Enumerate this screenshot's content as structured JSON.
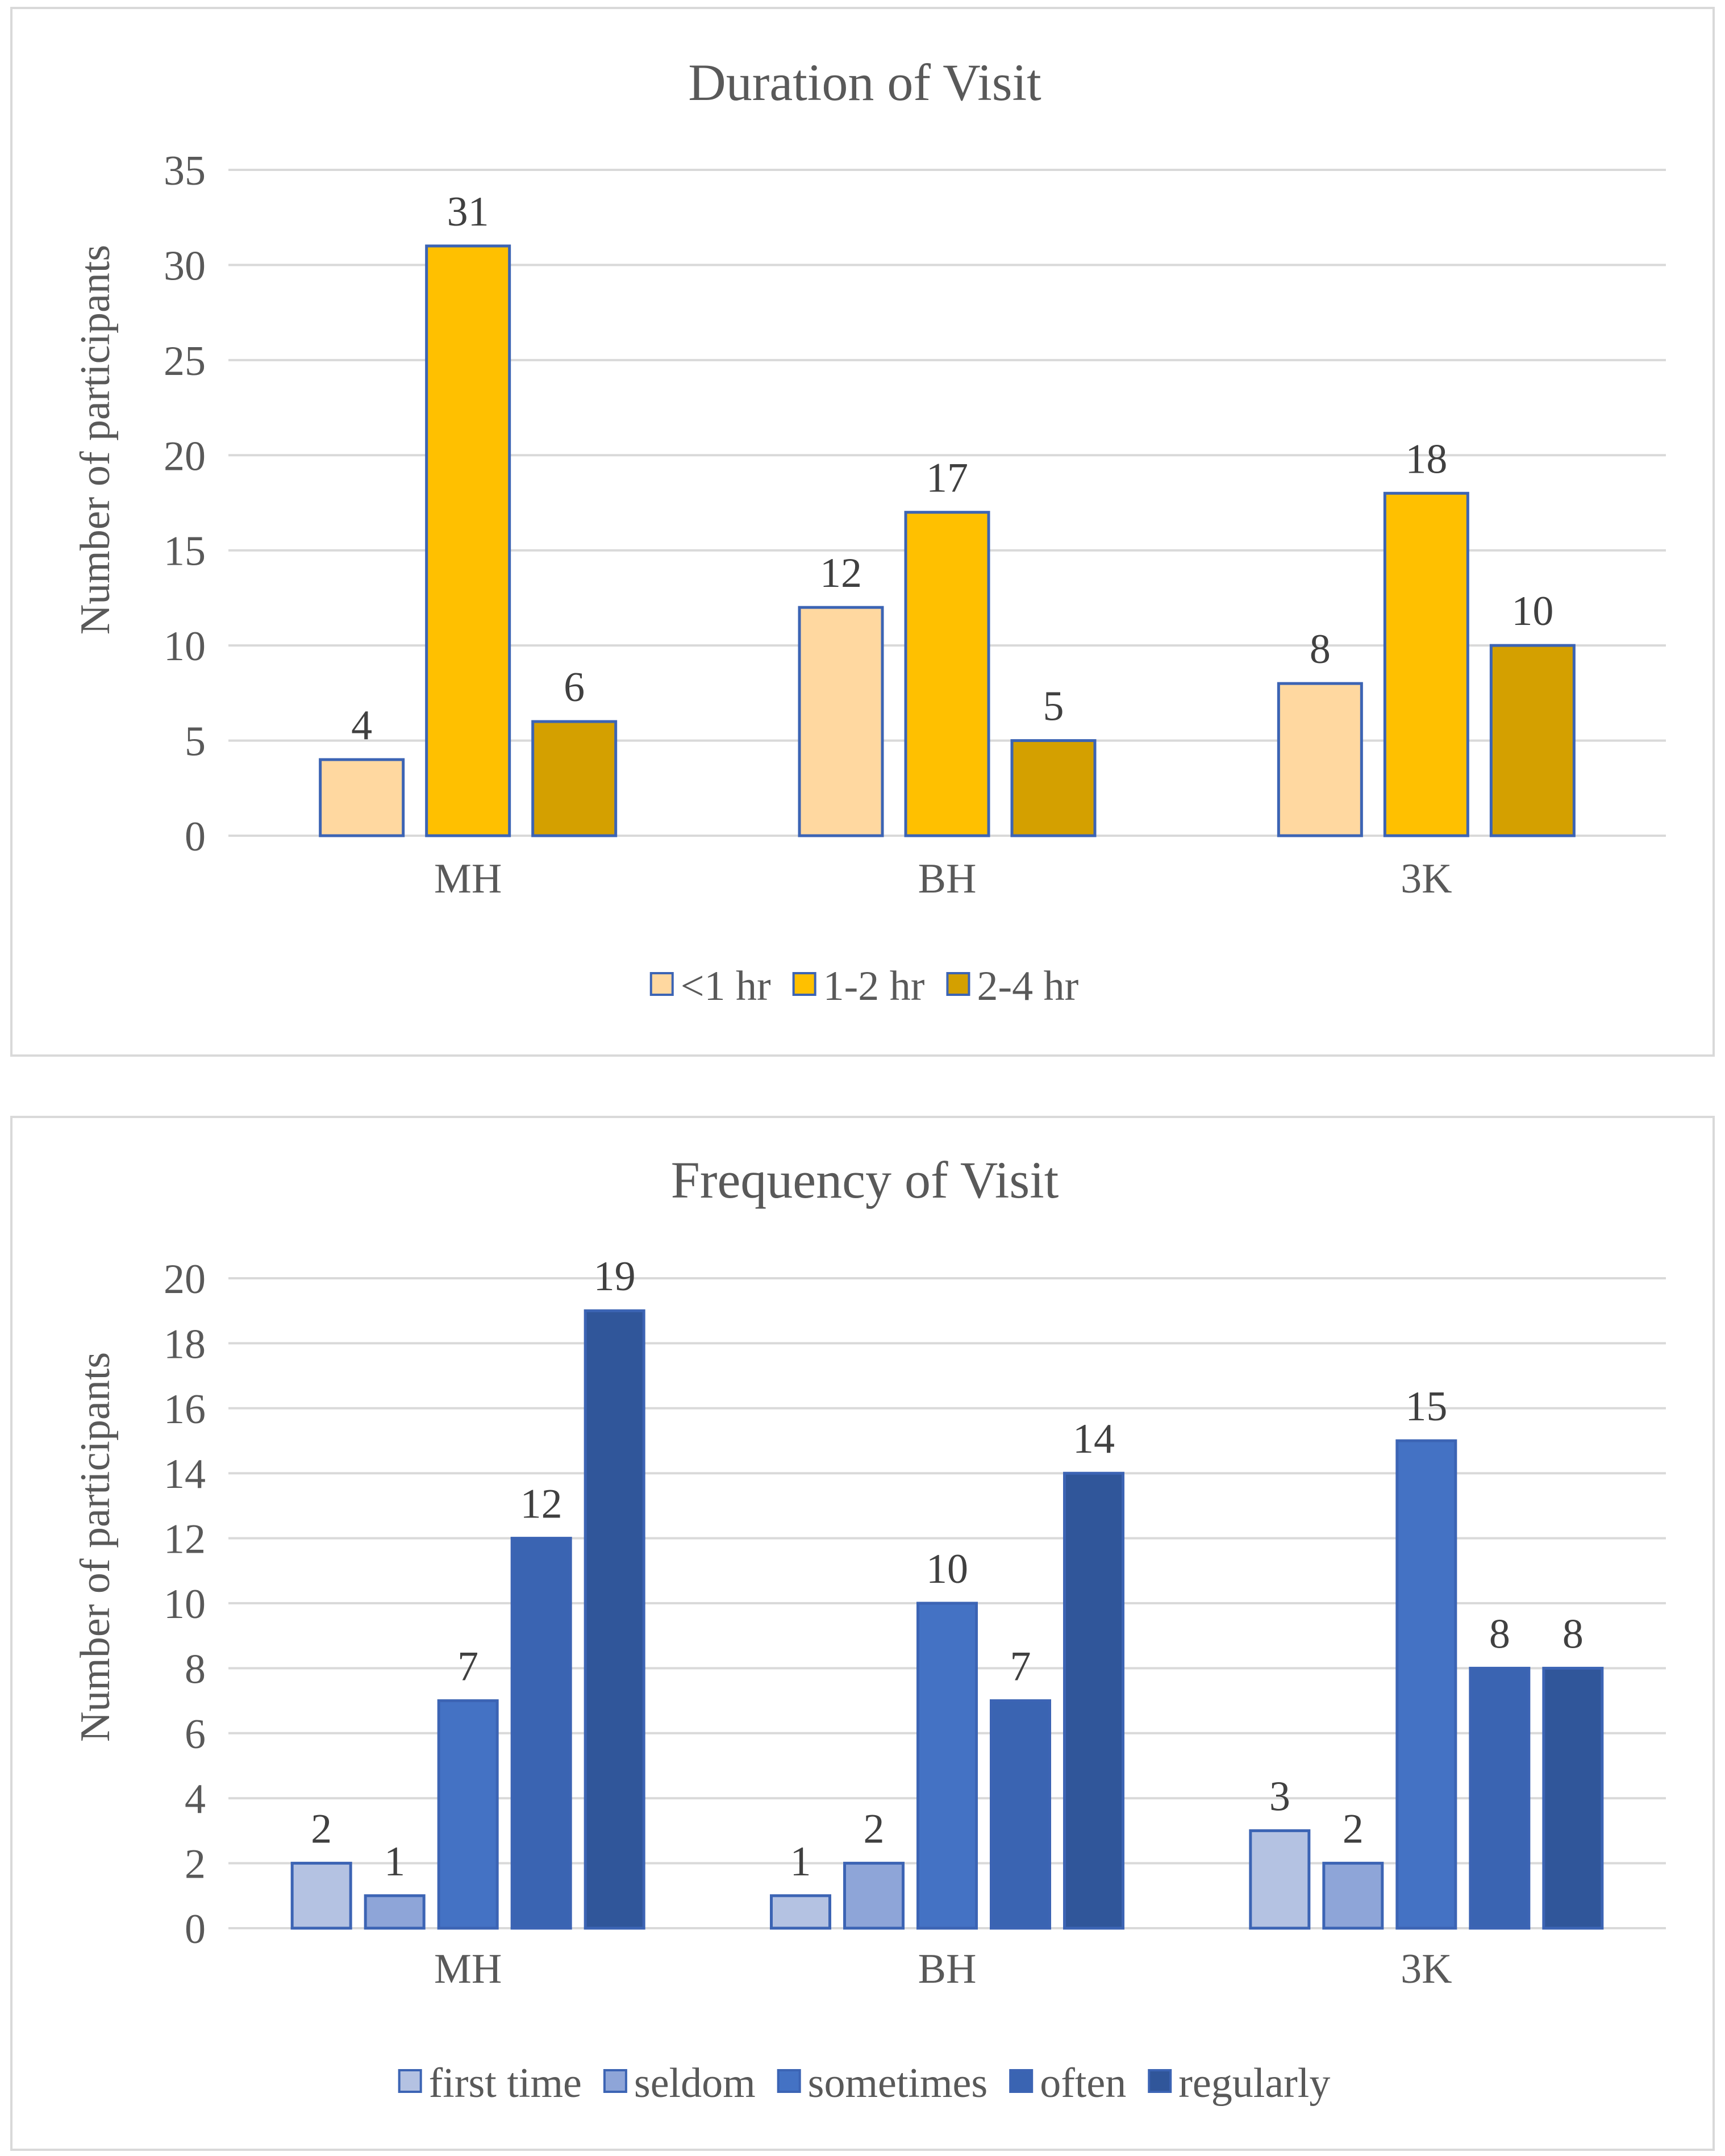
{
  "chart_data": [
    {
      "type": "bar",
      "title": "Duration of Visit",
      "ylabel": "Number of participants",
      "xlabel": "",
      "categories": [
        "MH",
        "BH",
        "3K"
      ],
      "ylim": [
        0,
        35
      ],
      "yticks": [
        0,
        5,
        10,
        15,
        20,
        25,
        30,
        35
      ],
      "grid": true,
      "legend": "bottom",
      "series": [
        {
          "name": "<1 hr",
          "color": "#FFD8A0",
          "values": [
            4,
            12,
            8
          ]
        },
        {
          "name": "1-2 hr",
          "color": "#FFC000",
          "values": [
            31,
            17,
            18
          ]
        },
        {
          "name": "2-4 hr",
          "color": "#D4A000",
          "values": [
            6,
            5,
            10
          ]
        }
      ]
    },
    {
      "type": "bar",
      "title": "Frequency of Visit",
      "ylabel": "Number of participants",
      "xlabel": "",
      "categories": [
        "MH",
        "BH",
        "3K"
      ],
      "ylim": [
        0,
        20
      ],
      "yticks": [
        0,
        2,
        4,
        6,
        8,
        10,
        12,
        14,
        16,
        18,
        20
      ],
      "grid": true,
      "legend": "bottom",
      "series": [
        {
          "name": "first time",
          "color": "#B4C2E2",
          "values": [
            2,
            1,
            3
          ]
        },
        {
          "name": "seldom",
          "color": "#8EA5D8",
          "values": [
            1,
            2,
            2
          ]
        },
        {
          "name": "sometimes",
          "color": "#4472C4",
          "values": [
            7,
            10,
            15
          ]
        },
        {
          "name": "often",
          "color": "#3A64B2",
          "values": [
            12,
            7,
            8
          ]
        },
        {
          "name": "regularly",
          "color": "#30569A",
          "values": [
            19,
            14,
            8
          ]
        }
      ]
    }
  ],
  "colors": {
    "bar_border": "#3C64B4",
    "grid": "#D9D9D9",
    "text": "#595959"
  }
}
